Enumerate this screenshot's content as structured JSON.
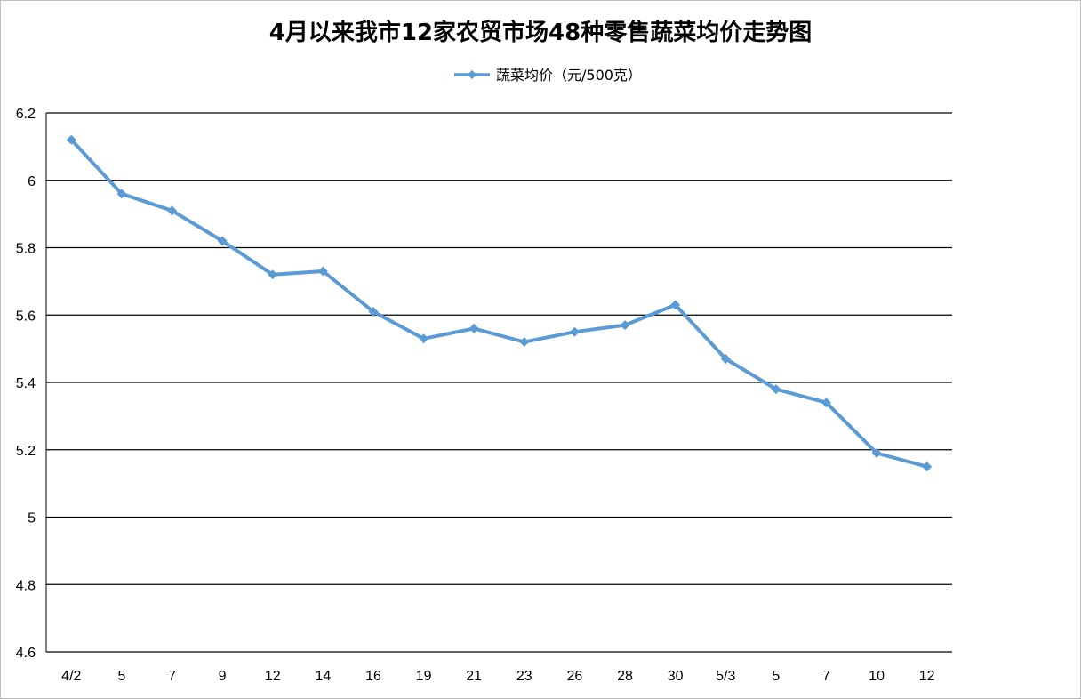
{
  "chart_data": {
    "type": "line",
    "title": "4月以来我市12家农贸市场48种零售蔬菜均价走势图",
    "categories": [
      "4/2",
      "5",
      "7",
      "9",
      "12",
      "14",
      "16",
      "19",
      "21",
      "23",
      "26",
      "28",
      "30",
      "5/3",
      "5",
      "7",
      "10",
      "12"
    ],
    "series": [
      {
        "name": "蔬菜均价（元/500克）",
        "values": [
          6.12,
          5.96,
          5.91,
          5.82,
          5.72,
          5.73,
          5.61,
          5.53,
          5.56,
          5.52,
          5.55,
          5.57,
          5.63,
          5.47,
          5.38,
          5.34,
          5.19,
          5.15
        ],
        "color": "#5b9bd5",
        "marker": "diamond"
      }
    ],
    "ylim": [
      4.6,
      6.2
    ],
    "yticks": [
      "6.2",
      "6",
      "5.8",
      "5.6",
      "5.4",
      "5.2",
      "5",
      "4.8",
      "4.6"
    ],
    "grid": true,
    "legend_position": "top-center"
  }
}
